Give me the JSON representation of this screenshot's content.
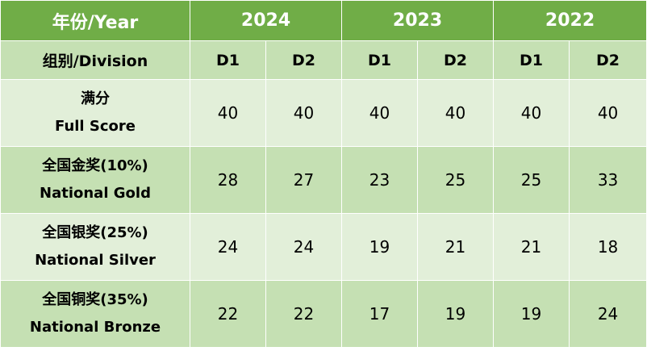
{
  "header": {
    "year_label": "年份/Year",
    "years": [
      "2024",
      "2023",
      "2022"
    ],
    "division_label": "组别/Division",
    "divisions": [
      "D1",
      "D2",
      "D1",
      "D2",
      "D1",
      "D2"
    ]
  },
  "rows": [
    {
      "label_cn": "满分",
      "label_en": "Full Score",
      "values": [
        "40",
        "40",
        "40",
        "40",
        "40",
        "40"
      ]
    },
    {
      "label_cn": "全国金奖(10%)",
      "label_en": "National Gold",
      "values": [
        "28",
        "27",
        "23",
        "25",
        "25",
        "33"
      ]
    },
    {
      "label_cn": "全国银奖(25%)",
      "label_en": "National Silver",
      "values": [
        "24",
        "24",
        "19",
        "21",
        "21",
        "18"
      ]
    },
    {
      "label_cn": "全国铜奖(35%)",
      "label_en": "National Bronze",
      "values": [
        "22",
        "22",
        "17",
        "19",
        "19",
        "24"
      ]
    }
  ],
  "colors": {
    "header_green": "#70ad47",
    "mid_green": "#c5e0b3",
    "light_green": "#e2efd9"
  }
}
